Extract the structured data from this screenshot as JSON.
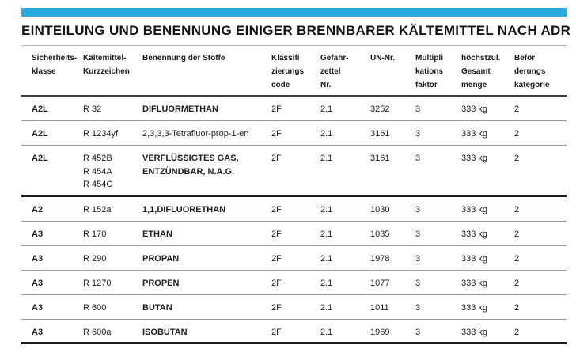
{
  "page": {
    "title": "EINTEILUNG UND BENENNUNG EINIGER BRENNBARER KÄLTEMITTEL NACH ADR",
    "accent_color": "#29abe2"
  },
  "table": {
    "column_keys": [
      "safety-class",
      "refrigerant-code",
      "substance-name",
      "classification-code",
      "hazard-label-no",
      "un-no",
      "multiplication-factor",
      "max-total-quantity",
      "transport-category"
    ],
    "headers": [
      {
        "lines": [
          "Sicherheits-",
          "klasse"
        ]
      },
      {
        "lines": [
          "Kältemittel-",
          "Kurzzeichen"
        ]
      },
      {
        "lines": [
          "Benennung der Stoffe"
        ]
      },
      {
        "lines": [
          "Klassifi",
          "zierungs",
          "code"
        ]
      },
      {
        "lines": [
          "Gefahr-",
          "zettel",
          "Nr."
        ]
      },
      {
        "lines": [
          "UN-Nr."
        ]
      },
      {
        "lines": [
          "Multipli",
          "kations",
          "faktor"
        ]
      },
      {
        "lines": [
          "höchstzul.",
          "Gesamt",
          "menge"
        ]
      },
      {
        "lines": [
          "Beför",
          "derungs",
          "kategorie"
        ]
      }
    ],
    "rows": [
      {
        "cells": [
          [
            "A2L"
          ],
          [
            "R 32"
          ],
          [
            "DIFLUORMETHAN"
          ],
          [
            "2F"
          ],
          [
            "2.1"
          ],
          [
            "3252"
          ],
          [
            "3"
          ],
          [
            "333 kg"
          ],
          [
            "2"
          ]
        ]
      },
      {
        "cells": [
          [
            "A2L"
          ],
          [
            "R 1234yf"
          ],
          [
            "2,3,3,3-Tetrafluor-prop-1-en"
          ],
          [
            "2F"
          ],
          [
            "2.1"
          ],
          [
            "3161"
          ],
          [
            "3"
          ],
          [
            "333 kg"
          ],
          [
            "2"
          ]
        ],
        "name_regular": true
      },
      {
        "cells": [
          [
            "A2L"
          ],
          [
            "R 452B",
            "R 454A",
            "R 454C"
          ],
          [
            "VERFLÜSSIGTES GAS,",
            "ENTZÜNDBAR, N.A.G."
          ],
          [
            "2F"
          ],
          [
            "2.1"
          ],
          [
            "3161"
          ],
          [
            "3"
          ],
          [
            "333 kg"
          ],
          [
            "2"
          ]
        ],
        "group_end": true,
        "multi_line": true
      },
      {
        "cells": [
          [
            "A2"
          ],
          [
            "R 152a"
          ],
          [
            "1,1,DIFLUORETHAN"
          ],
          [
            "2F"
          ],
          [
            "2.1"
          ],
          [
            "1030"
          ],
          [
            "3"
          ],
          [
            "333 kg"
          ],
          [
            "2"
          ]
        ]
      },
      {
        "cells": [
          [
            "A3"
          ],
          [
            "R 170"
          ],
          [
            "ETHAN"
          ],
          [
            "2F"
          ],
          [
            "2.1"
          ],
          [
            "1035"
          ],
          [
            "3"
          ],
          [
            "333 kg"
          ],
          [
            "2"
          ]
        ]
      },
      {
        "cells": [
          [
            "A3"
          ],
          [
            "R 290"
          ],
          [
            "PROPAN"
          ],
          [
            "2F"
          ],
          [
            "2.1"
          ],
          [
            "1978"
          ],
          [
            "3"
          ],
          [
            "333 kg"
          ],
          [
            "2"
          ]
        ]
      },
      {
        "cells": [
          [
            "A3"
          ],
          [
            "R 1270"
          ],
          [
            "PROPEN"
          ],
          [
            "2F"
          ],
          [
            "2.1"
          ],
          [
            "1077"
          ],
          [
            "3"
          ],
          [
            "333 kg"
          ],
          [
            "2"
          ]
        ]
      },
      {
        "cells": [
          [
            "A3"
          ],
          [
            "R 600"
          ],
          [
            "BUTAN"
          ],
          [
            "2F"
          ],
          [
            "2.1"
          ],
          [
            "1011"
          ],
          [
            "3"
          ],
          [
            "333 kg"
          ],
          [
            "2"
          ]
        ]
      },
      {
        "cells": [
          [
            "A3"
          ],
          [
            "R 600a"
          ],
          [
            "ISOBUTAN"
          ],
          [
            "2F"
          ],
          [
            "2.1"
          ],
          [
            "1969"
          ],
          [
            "3"
          ],
          [
            "333 kg"
          ],
          [
            "2"
          ]
        ]
      }
    ]
  }
}
